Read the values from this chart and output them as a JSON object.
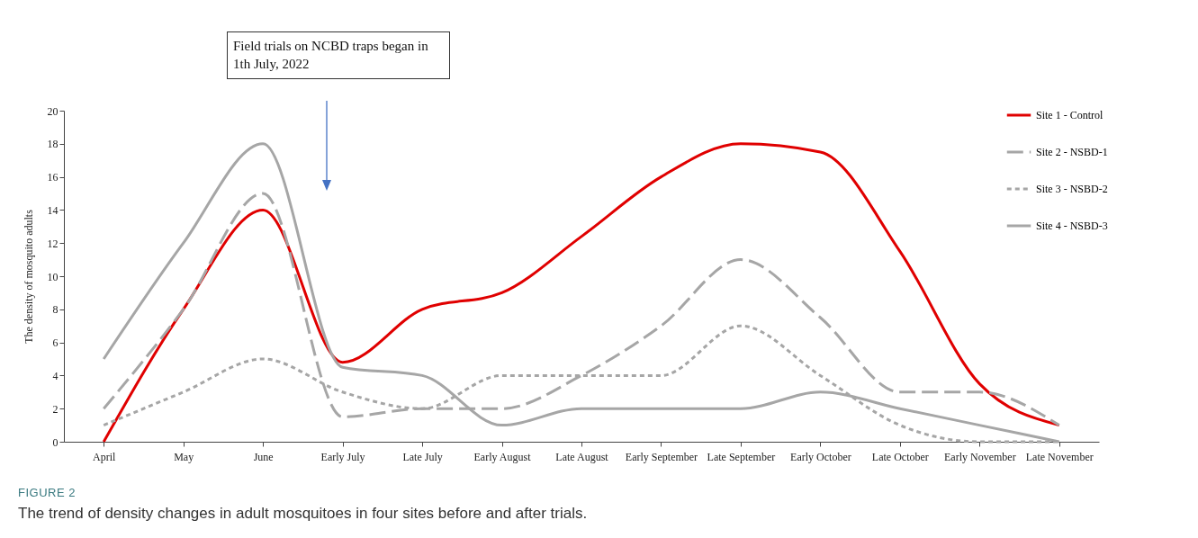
{
  "chart_data": {
    "type": "line",
    "ylabel": "The density of mosquito adults",
    "categories": [
      "April",
      "May",
      "June",
      "Early July",
      "Late July",
      "Early August",
      "Late August",
      "Early September",
      "Late September",
      "Early October",
      "Late October",
      "Early November",
      "Late November"
    ],
    "series": [
      {
        "name": "Site 1 - Control",
        "color": "#e00000",
        "line_style": "solid",
        "values": [
          0,
          8,
          14,
          4.8,
          8,
          9,
          12.4,
          16,
          18,
          17.5,
          11.5,
          3.5,
          1
        ]
      },
      {
        "name": "Site 2 - NSBD-1",
        "color": "#a6a6a6",
        "line_style": "dashed",
        "values": [
          2,
          8,
          15,
          1.5,
          2,
          2,
          4,
          7,
          11,
          7.5,
          3,
          3,
          1
        ]
      },
      {
        "name": "Site 3 - NSBD-2",
        "color": "#a6a6a6",
        "line_style": "dotted",
        "values": [
          1,
          3,
          5,
          3,
          2,
          4,
          4,
          4,
          7,
          4,
          1,
          0,
          0
        ]
      },
      {
        "name": "Site 4 - NSBD-3",
        "color": "#a6a6a6",
        "line_style": "solid",
        "values": [
          5,
          12,
          18,
          4.5,
          4,
          1,
          2,
          2,
          2,
          3,
          2,
          1,
          0
        ]
      }
    ],
    "ylim": [
      0,
      20
    ],
    "yticks": [
      0,
      2,
      4,
      6,
      8,
      10,
      12,
      14,
      16,
      18,
      20
    ],
    "grid": false,
    "legend": "top right",
    "annotations": [
      "Field trials on NCBD traps began in 1th July, 2022",
      "FIGURE 2",
      "The trend of density changes in adult mosquitoes in four sites before and after trials."
    ]
  }
}
